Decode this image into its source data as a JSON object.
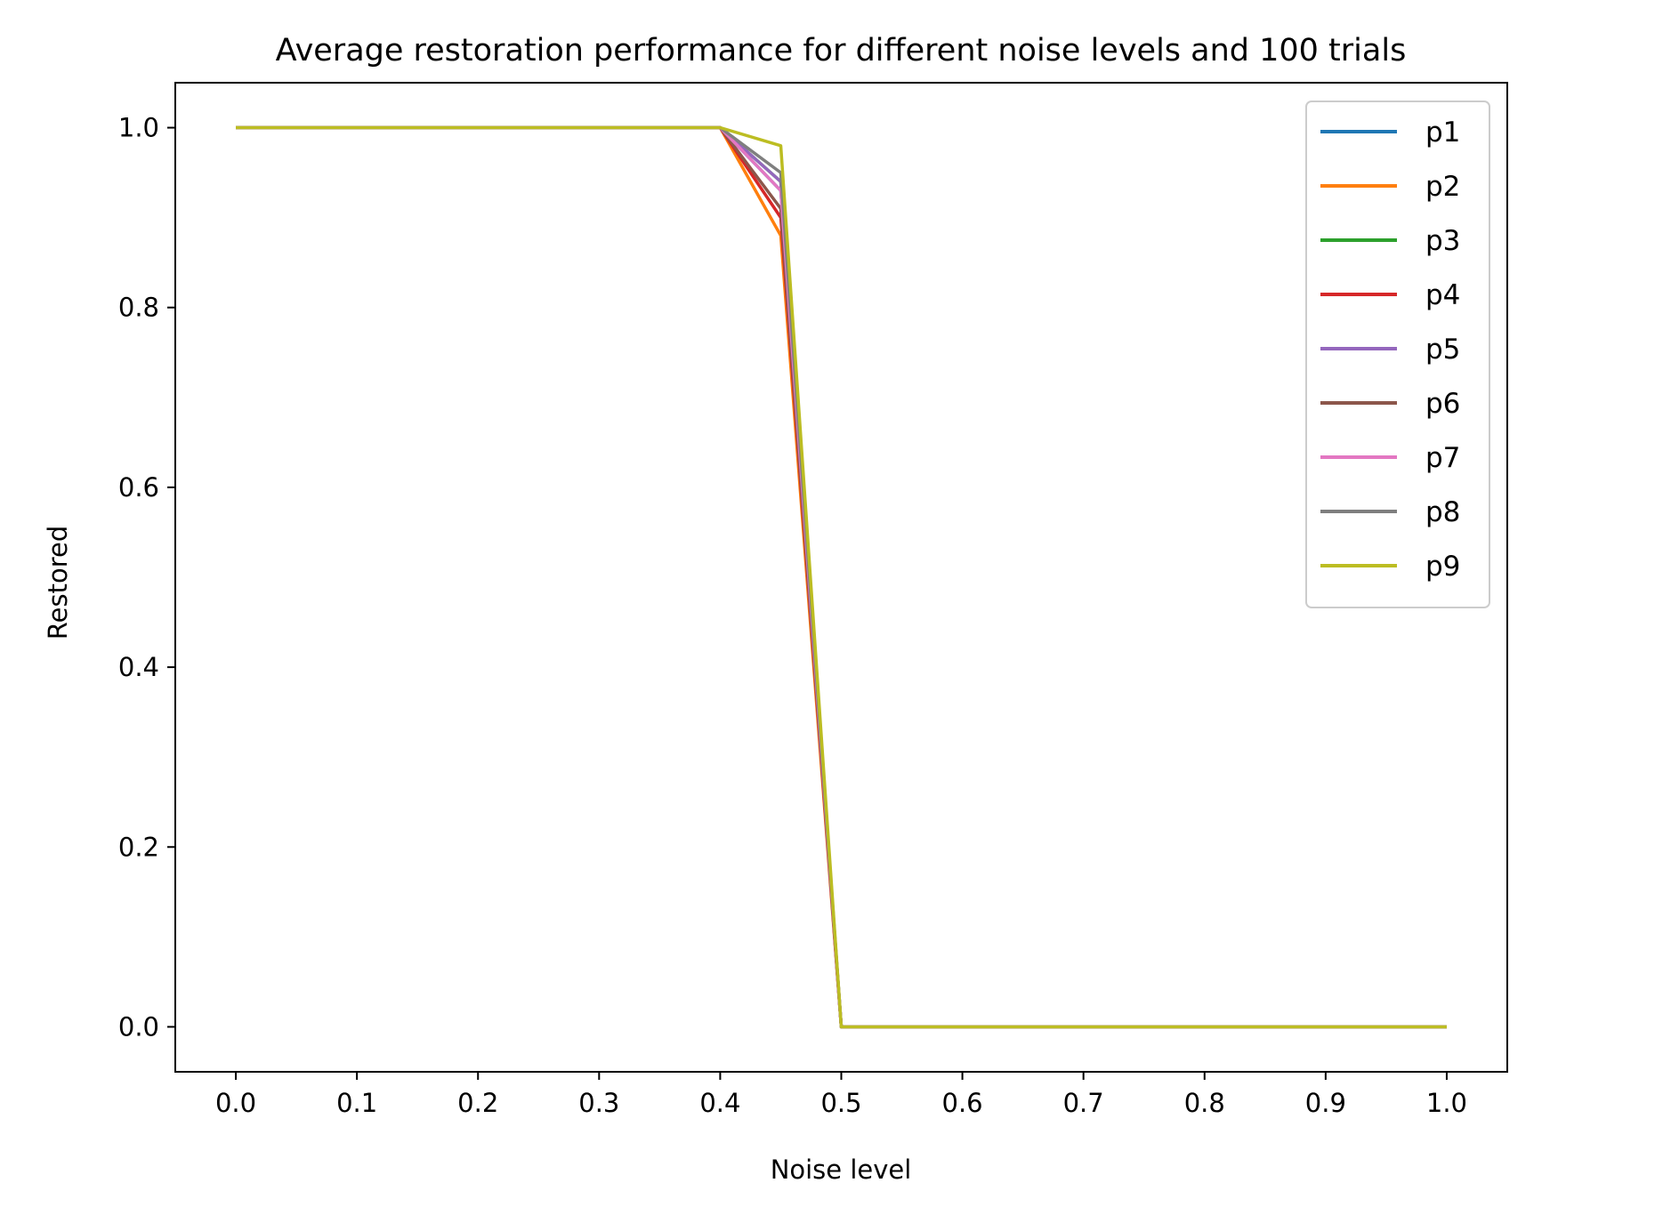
{
  "chart_data": {
    "type": "line",
    "title": "Average restoration performance for different noise levels and 100 trials",
    "xlabel": "Noise level",
    "ylabel": "Restored",
    "xlim": [
      -0.05,
      1.05
    ],
    "ylim": [
      -0.05,
      1.05
    ],
    "xticks": [
      0.0,
      0.1,
      0.2,
      0.3,
      0.4,
      0.5,
      0.6,
      0.7,
      0.8,
      0.9,
      1.0
    ],
    "xtick_labels": [
      "0.0",
      "0.1",
      "0.2",
      "0.3",
      "0.4",
      "0.5",
      "0.6",
      "0.7",
      "0.8",
      "0.9",
      "1.0"
    ],
    "yticks": [
      0.0,
      0.2,
      0.4,
      0.6,
      0.8,
      1.0
    ],
    "ytick_labels": [
      "0.0",
      "0.2",
      "0.4",
      "0.6",
      "0.8",
      "1.0"
    ],
    "grid": false,
    "legend_position": "top-right",
    "x": [
      0.0,
      0.05,
      0.1,
      0.15,
      0.2,
      0.25,
      0.3,
      0.35,
      0.4,
      0.45,
      0.5,
      0.55,
      0.6,
      0.65,
      0.7,
      0.75,
      0.8,
      0.85,
      0.9,
      0.95,
      1.0
    ],
    "series": [
      {
        "name": "p1",
        "color": "#1f77b4",
        "values": [
          1,
          1,
          1,
          1,
          1,
          1,
          1,
          1,
          1,
          0.93,
          0,
          0,
          0,
          0,
          0,
          0,
          0,
          0,
          0,
          0,
          0
        ]
      },
      {
        "name": "p2",
        "color": "#ff7f0e",
        "values": [
          1,
          1,
          1,
          1,
          1,
          1,
          1,
          1,
          1,
          0.88,
          0,
          0,
          0,
          0,
          0,
          0,
          0,
          0,
          0,
          0,
          0
        ]
      },
      {
        "name": "p3",
        "color": "#2ca02c",
        "values": [
          1,
          1,
          1,
          1,
          1,
          1,
          1,
          1,
          1,
          0.94,
          0,
          0,
          0,
          0,
          0,
          0,
          0,
          0,
          0,
          0,
          0
        ]
      },
      {
        "name": "p4",
        "color": "#d62728",
        "values": [
          1,
          1,
          1,
          1,
          1,
          1,
          1,
          1,
          1,
          0.9,
          0,
          0,
          0,
          0,
          0,
          0,
          0,
          0,
          0,
          0,
          0
        ]
      },
      {
        "name": "p5",
        "color": "#9467bd",
        "values": [
          1,
          1,
          1,
          1,
          1,
          1,
          1,
          1,
          1,
          0.94,
          0,
          0,
          0,
          0,
          0,
          0,
          0,
          0,
          0,
          0,
          0
        ]
      },
      {
        "name": "p6",
        "color": "#8c564b",
        "values": [
          1,
          1,
          1,
          1,
          1,
          1,
          1,
          1,
          1,
          0.91,
          0,
          0,
          0,
          0,
          0,
          0,
          0,
          0,
          0,
          0,
          0
        ]
      },
      {
        "name": "p7",
        "color": "#e377c2",
        "values": [
          1,
          1,
          1,
          1,
          1,
          1,
          1,
          1,
          1,
          0.93,
          0,
          0,
          0,
          0,
          0,
          0,
          0,
          0,
          0,
          0,
          0
        ]
      },
      {
        "name": "p8",
        "color": "#7f7f7f",
        "values": [
          1,
          1,
          1,
          1,
          1,
          1,
          1,
          1,
          1,
          0.95,
          0,
          0,
          0,
          0,
          0,
          0,
          0,
          0,
          0,
          0,
          0
        ]
      },
      {
        "name": "p9",
        "color": "#bcbd22",
        "values": [
          1,
          1,
          1,
          1,
          1,
          1,
          1,
          1,
          1,
          0.98,
          0,
          0,
          0,
          0,
          0,
          0,
          0,
          0,
          0,
          0,
          0
        ]
      }
    ]
  }
}
